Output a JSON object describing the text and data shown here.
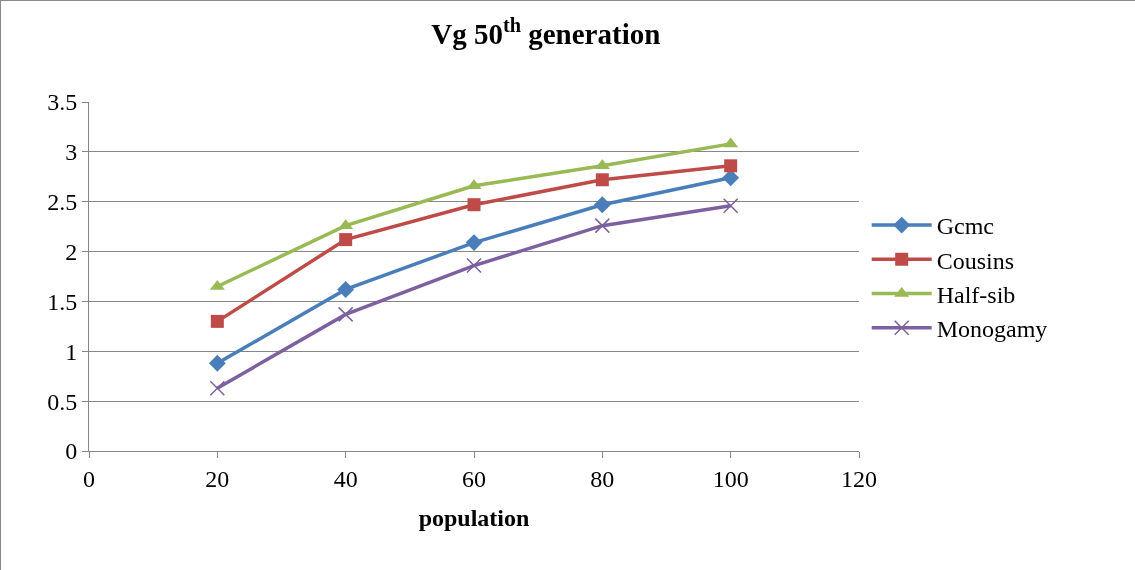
{
  "chart_data": {
    "type": "line",
    "title": "Vg 50$^{th}$ generation",
    "xlabel": "population",
    "x": [
      20,
      40,
      60,
      80,
      100
    ],
    "series": [
      {
        "name": "Gcmc",
        "color": "#4a7ebb",
        "marker": "diamond",
        "values": [
          0.88,
          1.62,
          2.09,
          2.47,
          2.74
        ]
      },
      {
        "name": "Cousins",
        "color": "#be4b48",
        "marker": "square",
        "values": [
          1.3,
          2.12,
          2.47,
          2.72,
          2.86
        ]
      },
      {
        "name": "Half-sib",
        "color": "#98b954",
        "marker": "triangle",
        "values": [
          1.65,
          2.26,
          2.66,
          2.86,
          3.08
        ]
      },
      {
        "name": "Monogamy",
        "color": "#7d60a0",
        "marker": "cross",
        "values": [
          0.63,
          1.37,
          1.86,
          2.26,
          2.46
        ]
      }
    ],
    "xlim": [
      0,
      120
    ],
    "xticks": [
      0,
      20,
      40,
      60,
      80,
      100,
      120
    ],
    "ylim": [
      0,
      3.5
    ],
    "yticks": [
      0,
      0.5,
      1,
      1.5,
      2,
      2.5,
      3,
      3.5
    ],
    "grid": "y",
    "legend": "right",
    "line_style": "solid"
  }
}
